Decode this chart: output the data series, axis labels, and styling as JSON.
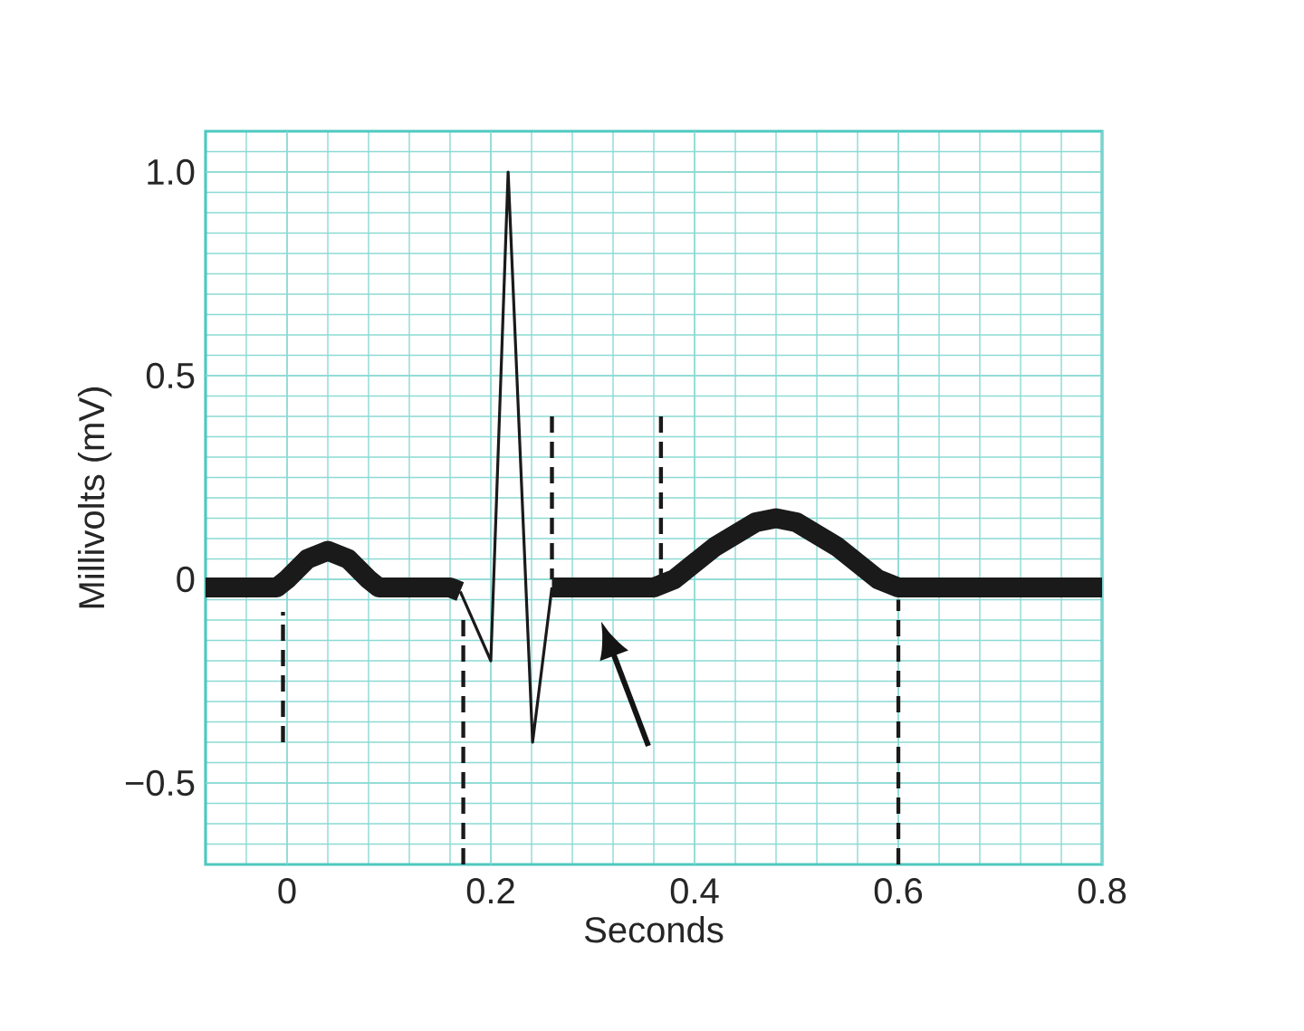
{
  "chart_data": {
    "type": "line",
    "xlabel": "Seconds",
    "ylabel": "Millivolts (mV)",
    "xlim": [
      -0.08,
      0.8
    ],
    "ylim": [
      -0.7,
      1.1
    ],
    "xticks": [
      {
        "value": -0.08,
        "label": null
      },
      {
        "value": -0.04,
        "label": null
      },
      0,
      {
        "value": 0.04,
        "label": null
      },
      {
        "value": 0.08,
        "label": null
      },
      {
        "value": 0.12,
        "label": null
      },
      {
        "value": 0.16,
        "label": null
      },
      0.2,
      {
        "value": 0.24,
        "label": null
      },
      {
        "value": 0.28,
        "label": null
      },
      {
        "value": 0.32,
        "label": null
      },
      {
        "value": 0.36,
        "label": null
      },
      0.4,
      {
        "value": 0.44,
        "label": null
      },
      {
        "value": 0.48,
        "label": null
      },
      {
        "value": 0.52,
        "label": null
      },
      {
        "value": 0.56,
        "label": null
      },
      0.6,
      {
        "value": 0.64,
        "label": null
      },
      {
        "value": 0.68,
        "label": null
      },
      {
        "value": 0.72,
        "label": null
      },
      {
        "value": 0.76,
        "label": null
      },
      0.8
    ],
    "yticks": [
      {
        "value": -0.7,
        "label": null
      },
      {
        "value": -0.65,
        "label": null
      },
      {
        "value": -0.6,
        "label": null
      },
      {
        "value": -0.55,
        "label": null
      },
      {
        "value": -0.5,
        "label": "−0.5"
      },
      {
        "value": -0.45,
        "label": null
      },
      {
        "value": -0.4,
        "label": null
      },
      {
        "value": -0.35,
        "label": null
      },
      {
        "value": -0.3,
        "label": null
      },
      {
        "value": -0.25,
        "label": null
      },
      {
        "value": -0.2,
        "label": null
      },
      {
        "value": -0.15,
        "label": null
      },
      {
        "value": -0.1,
        "label": null
      },
      {
        "value": -0.05,
        "label": null
      },
      {
        "value": 0,
        "label": "0"
      },
      {
        "value": 0.05,
        "label": null
      },
      {
        "value": 0.1,
        "label": null
      },
      {
        "value": 0.15,
        "label": null
      },
      {
        "value": 0.2,
        "label": null
      },
      {
        "value": 0.25,
        "label": null
      },
      {
        "value": 0.3,
        "label": null
      },
      {
        "value": 0.35,
        "label": null
      },
      {
        "value": 0.4,
        "label": null
      },
      {
        "value": 0.45,
        "label": null
      },
      0.5,
      {
        "value": 0.55,
        "label": null
      },
      {
        "value": 0.6,
        "label": null
      },
      {
        "value": 0.65,
        "label": null
      },
      {
        "value": 0.7,
        "label": null
      },
      {
        "value": 0.75,
        "label": null
      },
      {
        "value": 0.8,
        "label": null
      },
      {
        "value": 0.85,
        "label": null
      },
      {
        "value": 0.9,
        "label": null
      },
      {
        "value": 0.95,
        "label": null
      },
      {
        "value": 1.0,
        "label": "1.0"
      },
      {
        "value": 1.05,
        "label": null
      },
      {
        "value": 1.1,
        "label": null
      }
    ],
    "grid": true,
    "line_style": "solid",
    "series": [
      {
        "color": "#1a1a1a",
        "x": [
          -0.08,
          -0.01,
          0.0,
          0.02,
          0.04,
          0.06,
          0.08,
          0.09,
          0.16,
          0.17
        ],
        "values": [
          -0.02,
          -0.02,
          0.0,
          0.05,
          0.07,
          0.05,
          0.0,
          -0.02,
          -0.02,
          -0.03
        ]
      },
      {
        "color": "#1a1a1a",
        "x": [
          0.17,
          0.2,
          0.217,
          0.241,
          0.26
        ],
        "values": [
          -0.03,
          -0.2,
          1.0,
          -0.4,
          -0.02
        ]
      },
      {
        "color": "#1a1a1a",
        "x": [
          0.26,
          0.36,
          0.38,
          0.42,
          0.46,
          0.48,
          0.5,
          0.54,
          0.58,
          0.6,
          0.8
        ],
        "values": [
          -0.02,
          -0.02,
          0.0,
          0.08,
          0.14,
          0.15,
          0.14,
          0.08,
          0.0,
          -0.02,
          -0.02
        ]
      },
      {
        "color": "#1a1a1a",
        "line_style": "dashed",
        "x": [
          -0.004,
          -0.004
        ],
        "values": [
          -0.4,
          -0.08
        ]
      },
      {
        "color": "#1a1a1a",
        "line_style": "dashed",
        "x": [
          0.173,
          0.173
        ],
        "values": [
          -0.7,
          -0.08
        ]
      },
      {
        "color": "#1a1a1a",
        "line_style": "dashed",
        "x": [
          0.26,
          0.26
        ],
        "values": [
          0.4,
          0.0
        ]
      },
      {
        "color": "#1a1a1a",
        "line_style": "dashed",
        "x": [
          0.367,
          0.367
        ],
        "values": [
          0.4,
          0.0
        ]
      },
      {
        "color": "#1a1a1a",
        "line_style": "dashed",
        "x": [
          0.6,
          0.6
        ],
        "values": [
          -0.7,
          -0.05
        ]
      }
    ]
  }
}
